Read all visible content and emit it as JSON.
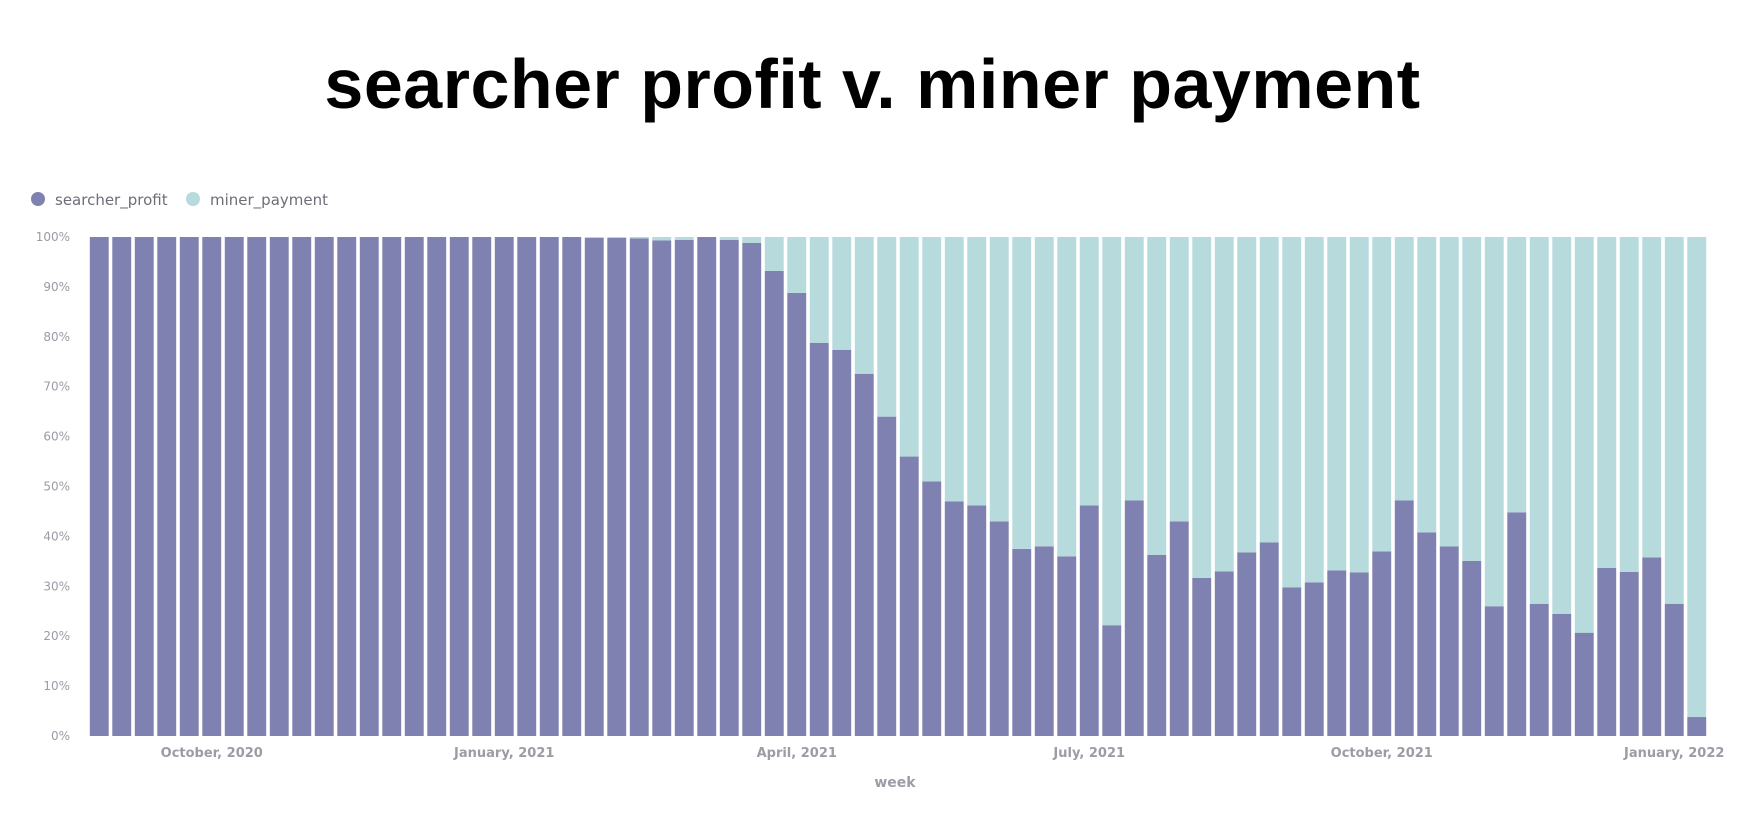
{
  "page_title": "searcher profit v. miner payment",
  "colors": {
    "searcher_profit": "#7f81b0",
    "miner_payment": "#b7dadd",
    "axis_text": "#9a9ca6"
  },
  "chart_data": {
    "type": "bar",
    "stacked": true,
    "normalized": true,
    "title": "searcher profit v. miner payment",
    "xlabel": "week",
    "ylabel": "",
    "ylim": [
      0,
      100
    ],
    "y_ticks": [
      "0%",
      "10%",
      "20%",
      "30%",
      "40%",
      "50%",
      "60%",
      "70%",
      "80%",
      "90%",
      "100%"
    ],
    "x_ticks": [
      {
        "label": "October, 2020",
        "index": 5
      },
      {
        "label": "January, 2021",
        "index": 18
      },
      {
        "label": "April, 2021",
        "index": 31
      },
      {
        "label": "July, 2021",
        "index": 44
      },
      {
        "label": "October, 2021",
        "index": 57
      },
      {
        "label": "January, 2022",
        "index": 70
      }
    ],
    "legend": {
      "position": "top-left"
    },
    "grid": false,
    "series": [
      {
        "name": "searcher_profit",
        "values": [
          100,
          100,
          100,
          100,
          100,
          100,
          100,
          100,
          100,
          100,
          100,
          100,
          100,
          100,
          100,
          100,
          100,
          100,
          100,
          100,
          100,
          100,
          99.8,
          99.8,
          99.7,
          99.3,
          99.4,
          100,
          99.4,
          98.8,
          93.2,
          88.8,
          78.8,
          77.4,
          72.6,
          64,
          56,
          51,
          47,
          46.2,
          43,
          37.5,
          38,
          36,
          46.2,
          22.2,
          47.2,
          36.3,
          43,
          31.7,
          33,
          36.8,
          38.8,
          29.8,
          30.8,
          33.2,
          32.8,
          37,
          47.2,
          40.8,
          38,
          35.1,
          26,
          44.8,
          26.5,
          24.5,
          20.7,
          33.7,
          32.9,
          35.8,
          26.5,
          3.8
        ]
      },
      {
        "name": "miner_payment",
        "values": [
          0,
          0,
          0,
          0,
          0,
          0,
          0,
          0,
          0,
          0,
          0,
          0,
          0,
          0,
          0,
          0,
          0,
          0,
          0,
          0,
          0,
          0,
          0.2,
          0.2,
          0.3,
          0.7,
          0.6,
          0,
          0.6,
          1.2,
          6.8,
          11.2,
          21.2,
          22.6,
          27.4,
          36,
          44,
          49,
          53,
          53.8,
          57,
          62.5,
          62,
          64,
          53.8,
          77.8,
          52.8,
          63.7,
          57,
          68.3,
          67,
          63.2,
          61.2,
          70.2,
          69.2,
          66.8,
          67.2,
          63,
          52.8,
          59.2,
          62,
          64.9,
          74,
          55.2,
          73.5,
          75.5,
          79.3,
          66.3,
          67.1,
          64.2,
          73.5,
          96.2
        ]
      }
    ]
  }
}
